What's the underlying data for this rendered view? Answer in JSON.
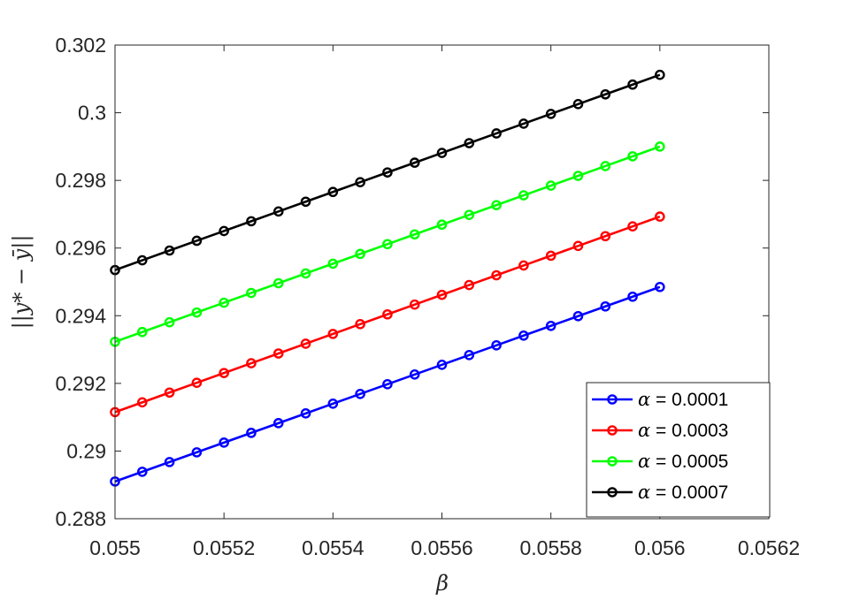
{
  "chart_data": {
    "type": "line",
    "title": "",
    "xlabel": "β",
    "ylabel": "||y* − ȳ||",
    "xlim": [
      0.055,
      0.0562
    ],
    "ylim": [
      0.288,
      0.302
    ],
    "xticks": [
      0.055,
      0.0552,
      0.0554,
      0.0556,
      0.0558,
      0.056,
      0.0562
    ],
    "xtick_labels": [
      "0.055",
      "0.0552",
      "0.0554",
      "0.0556",
      "0.0558",
      "0.056",
      "0.0562"
    ],
    "yticks": [
      0.288,
      0.29,
      0.292,
      0.294,
      0.296,
      0.298,
      0.3,
      0.302
    ],
    "ytick_labels": [
      "0.288",
      "0.29",
      "0.292",
      "0.294",
      "0.296",
      "0.298",
      "0.3",
      "0.302"
    ],
    "grid": false,
    "legend_position": "bottom-right",
    "x": [
      0.055,
      0.05505,
      0.0551,
      0.05515,
      0.0552,
      0.05525,
      0.0553,
      0.05535,
      0.0554,
      0.05545,
      0.0555,
      0.05555,
      0.0556,
      0.05565,
      0.0557,
      0.05575,
      0.0558,
      0.05585,
      0.0559,
      0.05595,
      0.056
    ],
    "series": [
      {
        "name": "α = 0.0001",
        "legend_symbol": "α",
        "legend_value": "= 0.0001",
        "color": "#0000ff",
        "y_start": 0.2891,
        "y_end": 0.29485
      },
      {
        "name": "α = 0.0003",
        "legend_symbol": "α",
        "legend_value": "= 0.0003",
        "color": "#ff0000",
        "y_start": 0.29115,
        "y_end": 0.29693
      },
      {
        "name": "α = 0.0005",
        "legend_symbol": "α",
        "legend_value": "= 0.0005",
        "color": "#00ff00",
        "y_start": 0.29323,
        "y_end": 0.299
      },
      {
        "name": "α = 0.0007",
        "legend_symbol": "α",
        "legend_value": "= 0.0007",
        "color": "#000000",
        "y_start": 0.29535,
        "y_end": 0.30112
      }
    ]
  }
}
